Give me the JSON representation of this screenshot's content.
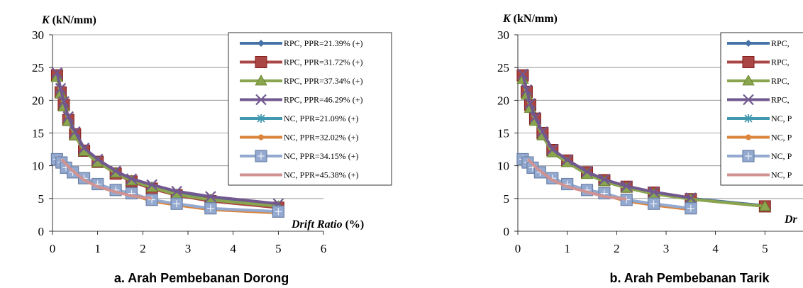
{
  "colors": {
    "rpc_2139": "#4573A7",
    "rpc_3172": "#AA4643",
    "rpc_3734": "#89A54E",
    "rpc_4629": "#71588F",
    "nc_2109": "#4198AF",
    "nc_3202": "#DB843D",
    "nc_3415": "#93A9CF",
    "nc_4538": "#D19392"
  },
  "chart_data": [
    {
      "type": "line",
      "ylabel_symbol": "K",
      "ylabel_unit": " (kN/mm)",
      "xlabel_symbol": "Drift Ratio",
      "xlabel_unit": " (%)",
      "caption": "a. Arah Pembebanan Dorong",
      "xlim": [
        0,
        6
      ],
      "ylim": [
        0,
        30
      ],
      "xticks": [
        "0",
        "1",
        "2",
        "3",
        "4",
        "5",
        "6"
      ],
      "yticks": [
        "0",
        "5",
        "10",
        "15",
        "20",
        "25",
        "30"
      ],
      "grid": "horizontal",
      "legend_position": "top-right",
      "series": [
        {
          "name": "RPC, PPR=21.39% (+)",
          "color": "#4573A7",
          "marker": "diamond",
          "x": [
            0.1,
            0.18,
            0.25,
            0.35,
            0.5,
            0.7,
            1.0,
            1.4,
            1.75,
            2.2,
            2.75,
            3.5,
            5.0
          ],
          "y": [
            24,
            21.5,
            19.5,
            17.2,
            15,
            12.5,
            10.8,
            9,
            7.8,
            6.8,
            5.7,
            4.9,
            3.9
          ]
        },
        {
          "name": "RPC, PPR=31.72% (+)",
          "color": "#AA4643",
          "marker": "square",
          "x": [
            0.1,
            0.18,
            0.25,
            0.35,
            0.5,
            0.7,
            1.0,
            1.4,
            1.75,
            2.2,
            2.75,
            3.5,
            5.0
          ],
          "y": [
            23.8,
            21.2,
            19.3,
            17,
            14.8,
            12.3,
            10.6,
            8.8,
            7.6,
            6.5,
            5.5,
            4.6,
            3.6
          ]
        },
        {
          "name": "RPC, PPR=37.34% (+)",
          "color": "#89A54E",
          "marker": "triangle",
          "x": [
            0.1,
            0.18,
            0.25,
            0.35,
            0.5,
            0.7,
            1.0,
            1.4,
            1.75,
            2.2,
            2.75,
            3.5,
            5.0
          ],
          "y": [
            23.5,
            21,
            19,
            16.8,
            14.6,
            12.2,
            10.5,
            8.9,
            7.7,
            6.7,
            5.6,
            4.8,
            3.8
          ]
        },
        {
          "name": "RPC, PPR=46.29% (+)",
          "color": "#71588F",
          "marker": "x",
          "x": [
            0.1,
            0.18,
            0.25,
            0.35,
            0.5,
            0.7,
            1.0,
            1.4,
            1.75,
            2.2,
            2.75,
            3.5,
            5.0
          ],
          "y": [
            24.2,
            21.8,
            19.8,
            17.5,
            15.2,
            12.7,
            11,
            9.2,
            8,
            7.1,
            6.1,
            5.3,
            4.2
          ]
        },
        {
          "name": "NC, PPR=21.09% (+)",
          "color": "#4198AF",
          "marker": "star",
          "x": [
            0.1,
            0.2,
            0.3,
            0.45,
            0.7,
            1.0,
            1.4,
            1.75,
            2.2,
            2.75,
            3.5,
            5.0
          ],
          "y": [
            10.9,
            10.4,
            9.6,
            8.9,
            8,
            7.2,
            6.2,
            5.7,
            4.7,
            4.1,
            3.4,
            2.9
          ]
        },
        {
          "name": "NC, PPR=32.02% (+)",
          "color": "#DB843D",
          "marker": "circle",
          "x": [
            0.1,
            0.2,
            0.3,
            0.45,
            0.7,
            1.0,
            1.4,
            1.75,
            2.2,
            2.75,
            3.5,
            5.0
          ],
          "y": [
            10.8,
            10.3,
            9.5,
            8.8,
            7.9,
            7.1,
            6.1,
            5.6,
            4.6,
            4,
            3.3,
            2.8
          ]
        },
        {
          "name": "NC, PPR=34.15% (+)",
          "color": "#93A9CF",
          "marker": "squareplus",
          "x": [
            0.1,
            0.2,
            0.3,
            0.45,
            0.7,
            1.0,
            1.4,
            1.75,
            2.2,
            2.75,
            3.5,
            5.0
          ],
          "y": [
            11,
            10.5,
            9.7,
            9,
            8.1,
            7.2,
            6.3,
            5.8,
            4.8,
            4.2,
            3.5,
            3
          ]
        },
        {
          "name": "NC, PPR=45.38% (+)",
          "color": "#D19392",
          "marker": "none",
          "x": [
            0.2,
            0.4,
            0.7,
            1.0,
            1.4,
            1.75,
            2.2
          ],
          "y": [
            11,
            9.5,
            7.8,
            6.8,
            6,
            5.4,
            5
          ]
        }
      ]
    },
    {
      "type": "line",
      "ylabel_symbol": "K",
      "ylabel_unit": " (kN/mm)",
      "xlabel_symbol": "Dr",
      "xlabel_unit": "",
      "caption": "b. Arah Pembebanan Tarik",
      "xlim": [
        0,
        6
      ],
      "ylim": [
        0,
        30
      ],
      "xticks": [
        "0",
        "1",
        "2",
        "3",
        "4",
        "5"
      ],
      "yticks": [
        "0",
        "5",
        "10",
        "15",
        "20",
        "25",
        "30"
      ],
      "grid": "horizontal",
      "legend_position": "top-right",
      "legend_labels": [
        "RPC,",
        "RPC,",
        "RPC,",
        "RPC,",
        "NC, P",
        "NC, P",
        "NC, P",
        "NC, P"
      ],
      "series": [
        {
          "color": "#4573A7",
          "marker": "diamond",
          "x": [
            0.1,
            0.18,
            0.25,
            0.35,
            0.5,
            0.7,
            1.0,
            1.4,
            1.75,
            2.2,
            2.75,
            3.5,
            5.0
          ],
          "y": [
            23.5,
            21,
            19,
            17,
            14.8,
            12.2,
            10.6,
            8.8,
            7.7,
            6.7,
            5.8,
            5,
            3.9
          ]
        },
        {
          "color": "#AA4643",
          "marker": "square",
          "x": [
            0.1,
            0.18,
            0.25,
            0.35,
            0.5,
            0.7,
            1.0,
            1.4,
            1.75,
            2.2,
            2.75,
            3.5,
            5.0
          ],
          "y": [
            23.8,
            21.3,
            19.3,
            17.2,
            15,
            12.4,
            10.8,
            9,
            7.8,
            6.8,
            5.9,
            4.9,
            3.8
          ]
        },
        {
          "color": "#89A54E",
          "marker": "triangle",
          "x": [
            0.1,
            0.18,
            0.25,
            0.35,
            0.5,
            0.7,
            1.0,
            1.4,
            1.75,
            2.2,
            2.75,
            3.5,
            5.0
          ],
          "y": [
            23.2,
            20.8,
            18.8,
            16.8,
            14.6,
            12,
            10.5,
            8.7,
            7.6,
            6.6,
            5.7,
            4.9,
            3.8
          ]
        },
        {
          "color": "#71588F",
          "marker": "x",
          "x": [
            0.1,
            0.18,
            0.25,
            0.35,
            0.5,
            0.7,
            1.0,
            1.4,
            1.75,
            2.2,
            2.75,
            3.5
          ],
          "y": [
            24,
            21.6,
            19.5,
            17.4,
            15.2,
            12.5,
            10.9,
            9.1,
            7.9,
            6.9,
            6,
            5.1
          ]
        },
        {
          "color": "#4198AF",
          "marker": "star",
          "x": [
            0.1,
            0.2,
            0.3,
            0.45,
            0.7,
            1.0,
            1.4,
            1.75,
            2.2,
            2.75,
            3.5
          ],
          "y": [
            10.9,
            10.4,
            9.6,
            8.9,
            8,
            7.2,
            6.2,
            5.6,
            4.7,
            4.1,
            3.4
          ]
        },
        {
          "color": "#DB843D",
          "marker": "circle",
          "x": [
            0.1,
            0.2,
            0.3,
            0.45,
            0.7,
            1.0,
            1.4,
            1.75,
            2.2,
            2.75,
            3.5
          ],
          "y": [
            10.8,
            10.3,
            9.5,
            8.8,
            7.9,
            7.1,
            6.1,
            5.5,
            4.6,
            4,
            3.3
          ]
        },
        {
          "color": "#93A9CF",
          "marker": "squareplus",
          "x": [
            0.1,
            0.2,
            0.3,
            0.45,
            0.7,
            1.0,
            1.4,
            1.75,
            2.2,
            2.75,
            3.5
          ],
          "y": [
            11,
            10.5,
            9.7,
            9,
            8.1,
            7.2,
            6.3,
            5.8,
            4.8,
            4.2,
            3.5
          ]
        },
        {
          "color": "#D19392",
          "marker": "none",
          "x": [
            0.2,
            0.4,
            0.7,
            1.0,
            1.4,
            1.75,
            2.2
          ],
          "y": [
            11,
            9.5,
            7.8,
            6.8,
            6,
            5.3,
            4.9
          ]
        }
      ]
    }
  ]
}
